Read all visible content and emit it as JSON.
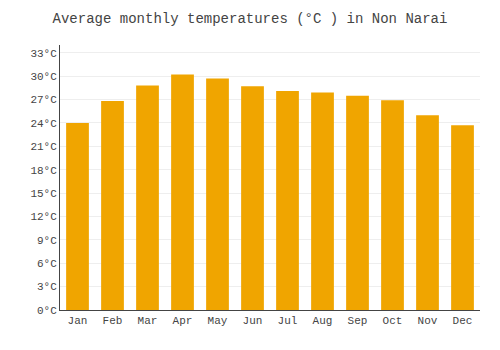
{
  "chart_data": {
    "type": "bar",
    "title": "Average monthly temperatures (°C ) in Non Narai",
    "categories": [
      "Jan",
      "Feb",
      "Mar",
      "Apr",
      "May",
      "Jun",
      "Jul",
      "Aug",
      "Sep",
      "Oct",
      "Nov",
      "Dec"
    ],
    "values": [
      24.0,
      26.8,
      28.8,
      30.2,
      29.7,
      28.7,
      28.1,
      27.9,
      27.5,
      26.9,
      25.0,
      23.7
    ],
    "color": "#F0A500",
    "ylim": [
      0,
      34
    ],
    "yticks": [
      {
        "value": 0,
        "label": "0°C"
      },
      {
        "value": 3,
        "label": "3°C"
      },
      {
        "value": 6,
        "label": "6°C"
      },
      {
        "value": 9,
        "label": "9°C"
      },
      {
        "value": 12,
        "label": "12°C"
      },
      {
        "value": 15,
        "label": "15°C"
      },
      {
        "value": 18,
        "label": "18°C"
      },
      {
        "value": 21,
        "label": "21°C"
      },
      {
        "value": 24,
        "label": "24°C"
      },
      {
        "value": 27,
        "label": "27°C"
      },
      {
        "value": 30,
        "label": "30°C"
      },
      {
        "value": 33,
        "label": "33°C"
      }
    ],
    "grid": true
  }
}
